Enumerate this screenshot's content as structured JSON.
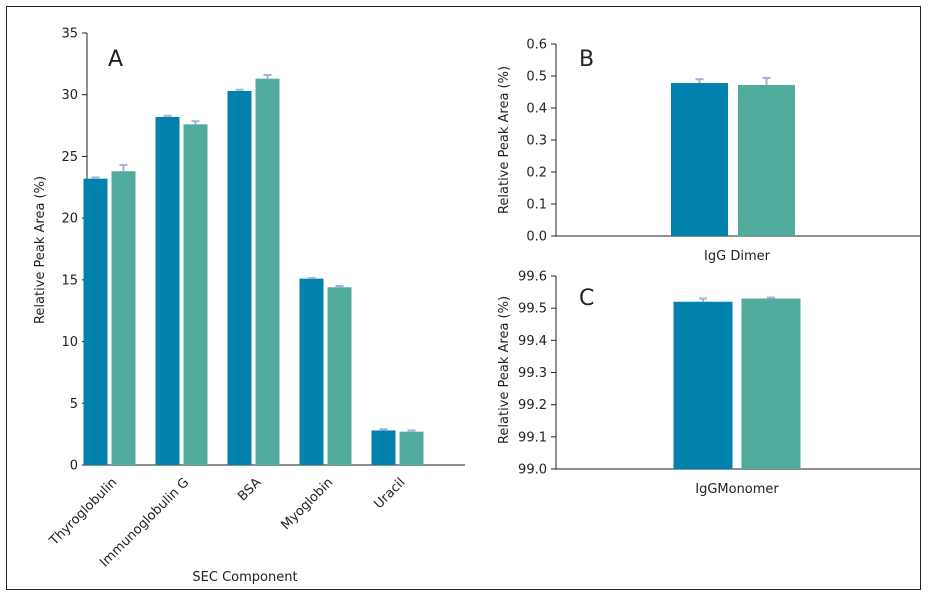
{
  "colors": {
    "series1": "#0082AD",
    "series2": "#52AC9E",
    "errorbar": "#9FB4DA",
    "axis": "#222222"
  },
  "chart_data": [
    {
      "panel": "A",
      "type": "bar",
      "title": "",
      "xlabel": "SEC Component",
      "ylabel": "Relative Peak Area (%)",
      "ylim": [
        0,
        35
      ],
      "yticks": [
        "0",
        "5",
        "10",
        "15",
        "20",
        "25",
        "30",
        "35"
      ],
      "categories": [
        "Thyroglobulin",
        "Immunoglobulin G",
        "BSA",
        "Myoglobin",
        "Uracil"
      ],
      "series": [
        {
          "values": [
            23.2,
            28.2,
            30.3,
            15.1,
            2.8
          ],
          "errors": [
            0.1,
            0.1,
            0.1,
            0.05,
            0.1
          ]
        },
        {
          "values": [
            23.8,
            27.6,
            31.3,
            14.4,
            2.7
          ],
          "errors": [
            0.5,
            0.25,
            0.3,
            0.1,
            0.1
          ]
        }
      ],
      "grid": false
    },
    {
      "panel": "B",
      "type": "bar",
      "title": "",
      "xlabel": "IgG Dimer",
      "ylabel": "Relative Peak Area (%)",
      "ylim": [
        0,
        0.6
      ],
      "yticks": [
        "0.0",
        "0.1",
        "0.2",
        "0.3",
        "0.4",
        "0.5",
        "0.6"
      ],
      "categories": [
        "IgG Dimer"
      ],
      "series": [
        {
          "values": [
            0.478
          ],
          "errors": [
            0.012
          ]
        },
        {
          "values": [
            0.472
          ],
          "errors": [
            0.022
          ]
        }
      ],
      "grid": false
    },
    {
      "panel": "C",
      "type": "bar",
      "title": "",
      "xlabel": "IgGMonomer",
      "ylabel": "Relative Peak Area (%)",
      "ylim": [
        99.0,
        99.6
      ],
      "yticks": [
        "99.0",
        "99.1",
        "99.2",
        "99.3",
        "99.4",
        "99.5",
        "99.6"
      ],
      "categories": [
        "IgGMonomer"
      ],
      "series": [
        {
          "values": [
            99.52
          ],
          "errors": [
            0.01
          ]
        },
        {
          "values": [
            99.53
          ],
          "errors": [
            0.003
          ]
        }
      ],
      "grid": false
    }
  ]
}
